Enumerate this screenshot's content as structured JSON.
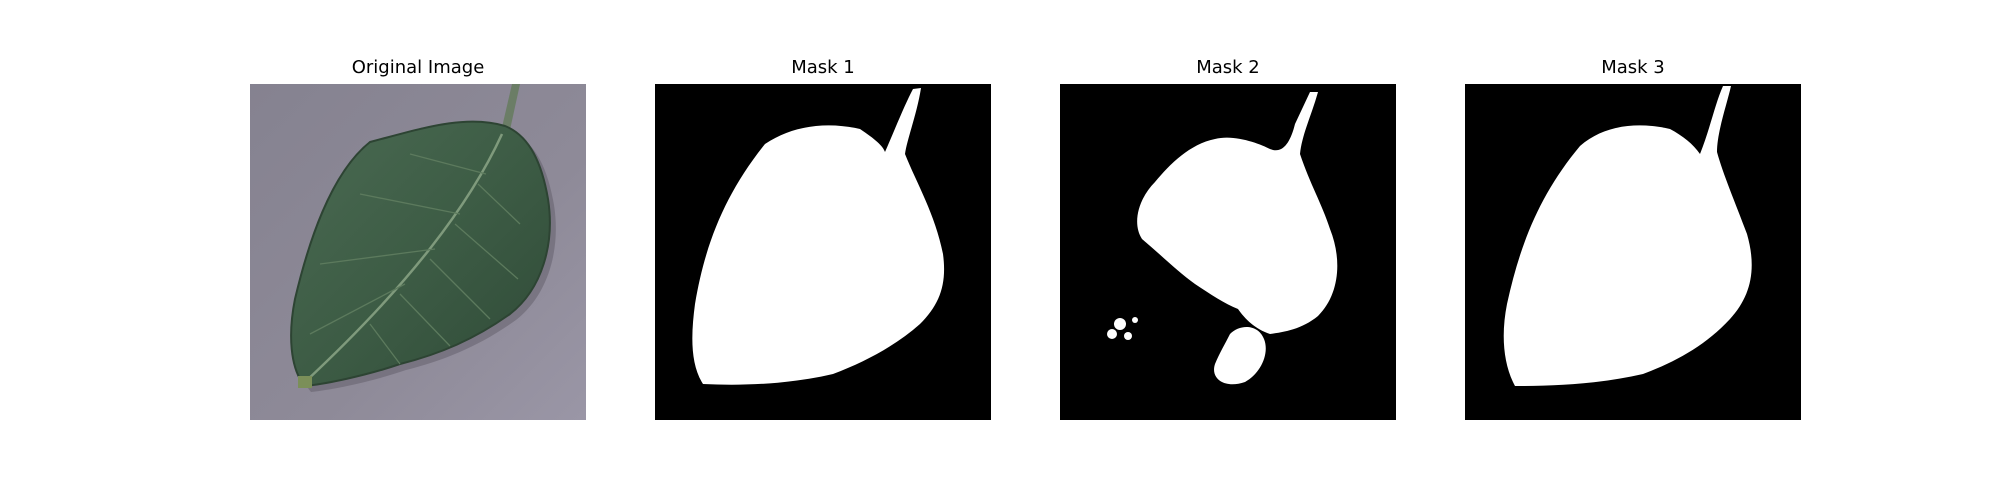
{
  "figure": {
    "background": "#ffffff",
    "panels": [
      {
        "title": "Original Image",
        "content": "photo of a green leaf on a purple-gray surface"
      },
      {
        "title": "Mask 1",
        "content": "binary segmentation mask"
      },
      {
        "title": "Mask 2",
        "content": "binary segmentation mask"
      },
      {
        "title": "Mask 3",
        "content": "binary segmentation mask"
      }
    ],
    "colors": {
      "mask_background": "#000000",
      "mask_foreground": "#ffffff",
      "photo_background": "#8b8794",
      "leaf": "#3f5f47"
    }
  }
}
